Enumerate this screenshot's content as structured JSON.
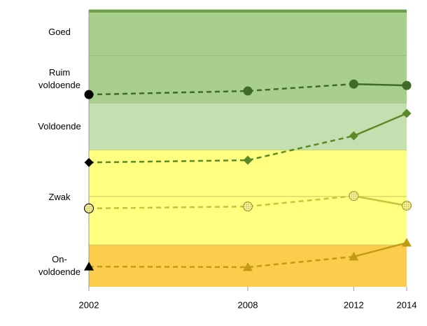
{
  "chart_data": {
    "type": "line",
    "x": [
      2002,
      2008,
      2012,
      2014
    ],
    "xlim": [
      2002,
      2014
    ],
    "xticks": [
      2002,
      2008,
      2012,
      2014
    ],
    "ylim": [
      0,
      100
    ],
    "bands": [
      {
        "label": "On-voldoende",
        "from": 0,
        "to": 15.2,
        "color": "#fccd4c"
      },
      {
        "label": "Zwak",
        "from": 15.2,
        "to": 49.5,
        "color": "#ffff80",
        "divider": 32.6
      },
      {
        "label": "Voldoende",
        "from": 49.5,
        "to": 66.4,
        "color": "#c5e0b0"
      },
      {
        "label": "Ruim voldoende",
        "from": 66.4,
        "to": 83.6,
        "color": "#a9cf8c"
      },
      {
        "label": "Goed",
        "from": 83.6,
        "to": 100,
        "color": "#a9cf8c"
      }
    ],
    "top_strip_color": "#6f9e4c",
    "solid_from": 2012,
    "start_marker_color": "#000000",
    "series": [
      {
        "color": "#3f6b28",
        "marker": "circle",
        "values": [
          69.4,
          70.7,
          73.2,
          72.7
        ]
      },
      {
        "color": "#5a8a28",
        "marker": "diamond",
        "values": [
          44.9,
          45.7,
          54.5,
          62.6
        ]
      },
      {
        "color": "#c8c23c",
        "marker": "open-circle",
        "values": [
          28.3,
          29.0,
          32.8,
          29.3
        ]
      },
      {
        "color": "#c09c14",
        "marker": "triangle",
        "values": [
          7.3,
          7.1,
          10.9,
          15.9
        ]
      }
    ]
  }
}
